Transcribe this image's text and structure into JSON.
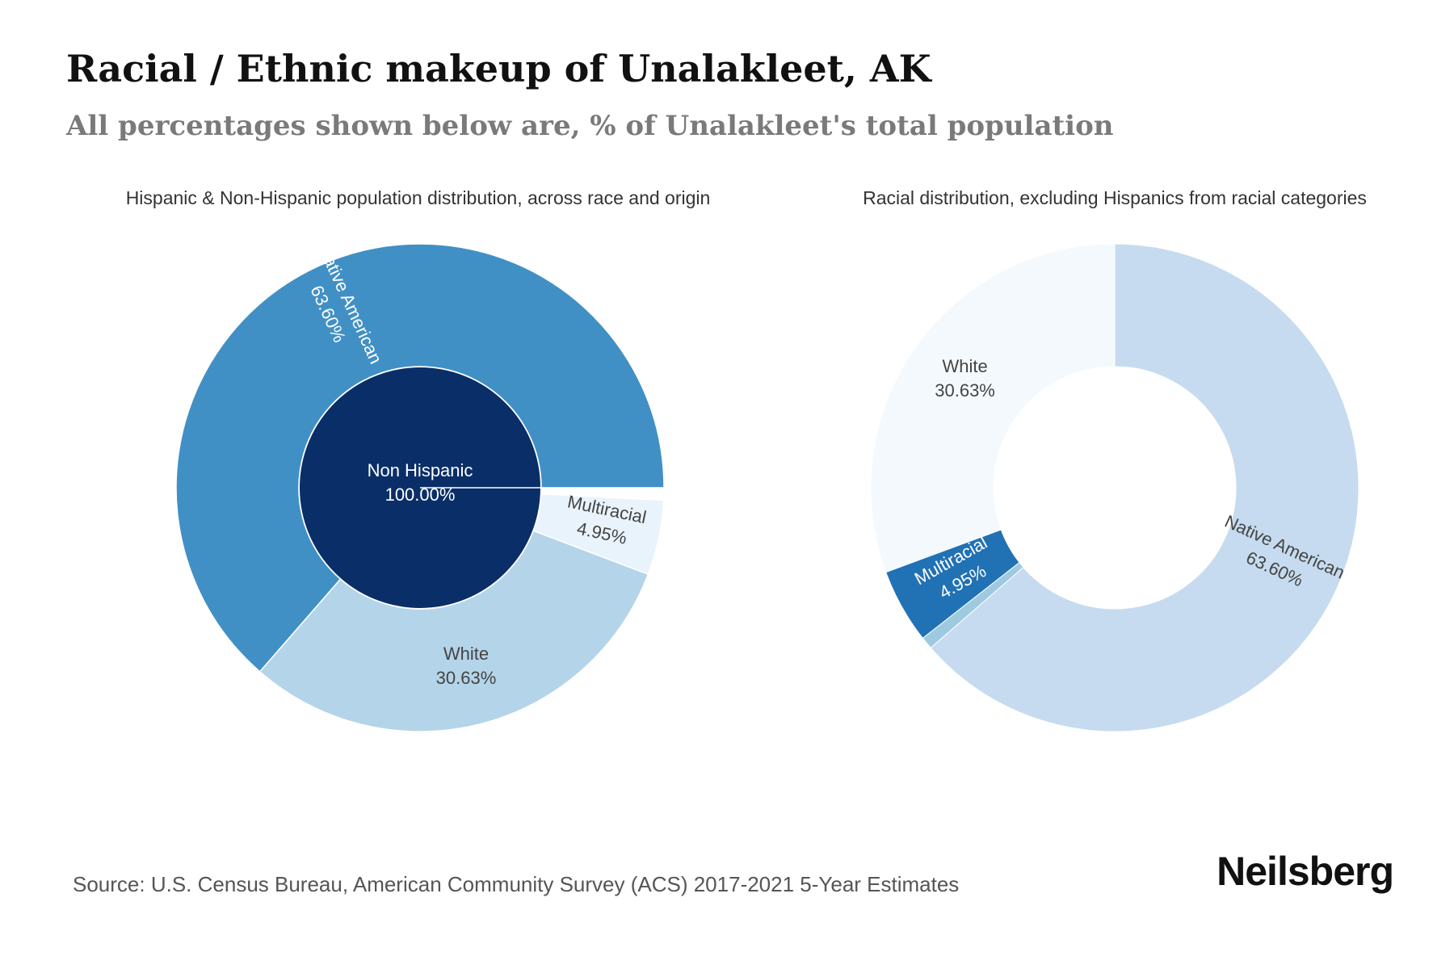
{
  "header": {
    "title": "Racial / Ethnic makeup of Unalakleet, AK",
    "subtitle": "All percentages shown below are, % of Unalakleet's total population"
  },
  "footer": {
    "source": "Source: U.S. Census Bureau, American Community Survey (ACS) 2017-2021 5-Year Estimates",
    "brand": "Neilsberg"
  },
  "chart_data": [
    {
      "type": "pie",
      "title": "Hispanic & Non-Hispanic population distribution, across race and origin",
      "inner_ring": [
        {
          "label": "Non Hispanic",
          "value": 100.0,
          "value_label": "100.00%",
          "color": "#0a2e67"
        }
      ],
      "outer_ring": [
        {
          "label": "Native American",
          "value": 63.6,
          "value_label": "63.60%",
          "color": "#4190c5"
        },
        {
          "label": "White",
          "value": 30.63,
          "value_label": "30.63%",
          "color": "#b4d4e9"
        },
        {
          "label": "Multiracial",
          "value": 4.95,
          "value_label": "4.95%",
          "color": "#e9f3fb"
        }
      ]
    },
    {
      "type": "pie",
      "title": "Racial distribution, excluding Hispanics from racial categories",
      "slices": [
        {
          "label": "Native American",
          "value": 63.6,
          "value_label": "63.60%",
          "color": "#c6dbef"
        },
        {
          "label": "",
          "value": 0.82,
          "value_label": "",
          "color": "#9ecae1"
        },
        {
          "label": "Multiracial",
          "value": 4.95,
          "value_label": "4.95%",
          "color": "#2171b5"
        },
        {
          "label": "White",
          "value": 30.63,
          "value_label": "30.63%",
          "color": "#f4f9fe"
        }
      ]
    }
  ]
}
